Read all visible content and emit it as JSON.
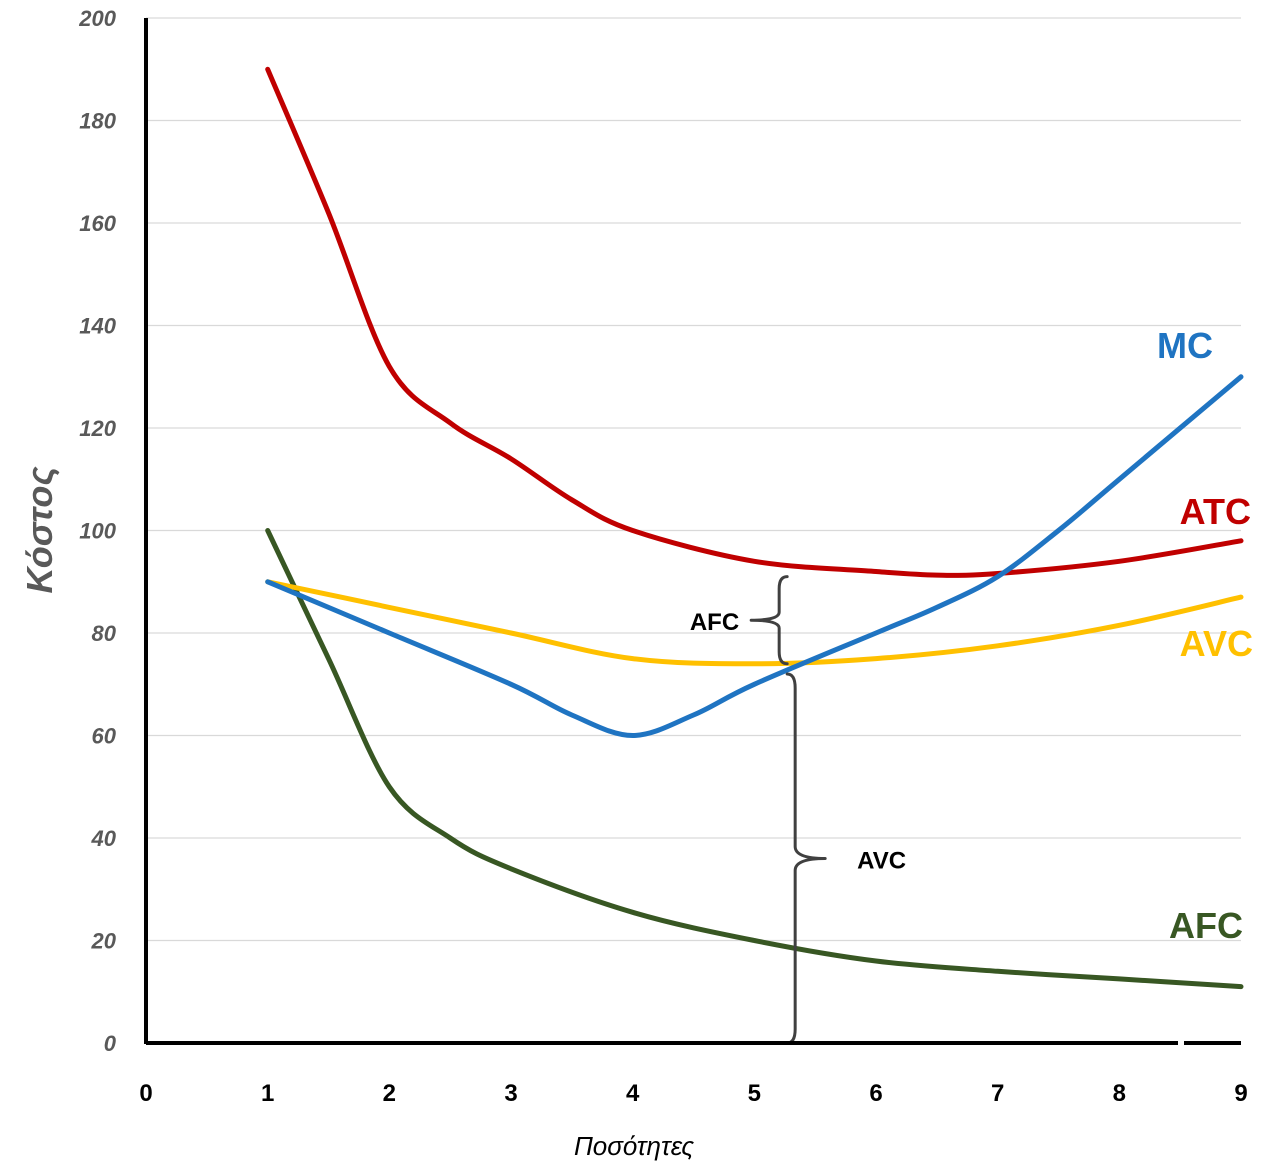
{
  "chart_data": {
    "type": "line",
    "xlabel": "Ποσότητες",
    "ylabel": "Κόστος",
    "xlim": [
      0,
      9
    ],
    "ylim": [
      0,
      200
    ],
    "x_ticks": [
      "0",
      "1",
      "2",
      "3",
      "4",
      "5",
      "6",
      "7",
      "8",
      "9"
    ],
    "y_ticks": [
      "0",
      "20",
      "40",
      "60",
      "80",
      "100",
      "120",
      "140",
      "160",
      "180",
      "200"
    ],
    "grid": "horizontal",
    "series": [
      {
        "name": "MC",
        "color": "#1F74C2",
        "x": [
          1,
          2,
          3,
          3.5,
          4,
          4.5,
          5,
          6,
          6.5,
          7,
          7.5,
          8,
          9
        ],
        "y": [
          90,
          80,
          70,
          64,
          60,
          64,
          70,
          80,
          85,
          91,
          100,
          110,
          130
        ]
      },
      {
        "name": "ATC",
        "color": "#C00000",
        "x": [
          1,
          1.5,
          2,
          2.5,
          3,
          3.5,
          4,
          5,
          6,
          6.5,
          7,
          8,
          9
        ],
        "y": [
          190,
          162,
          132,
          121,
          114,
          106,
          100,
          94,
          92,
          91.3,
          91.6,
          94,
          98
        ]
      },
      {
        "name": "AVC",
        "color": "#FFC000",
        "x": [
          1,
          2,
          3,
          4,
          5,
          6,
          7,
          8,
          9
        ],
        "y": [
          90,
          85,
          80,
          75,
          74,
          75,
          77.5,
          81.5,
          87
        ]
      },
      {
        "name": "AFC",
        "color": "#385723",
        "x": [
          1,
          1.5,
          2,
          2.5,
          3,
          4,
          5,
          6,
          7,
          8,
          9
        ],
        "y": [
          100,
          75,
          50,
          40,
          34,
          25.5,
          20,
          16,
          14,
          12.5,
          11
        ]
      }
    ],
    "annotations": [
      {
        "label": "AFC",
        "x": 5.5,
        "y_from": 74,
        "y_to": 91
      },
      {
        "label": "AVC",
        "x": 5.5,
        "y_from": 0,
        "y_to": 72
      }
    ]
  }
}
